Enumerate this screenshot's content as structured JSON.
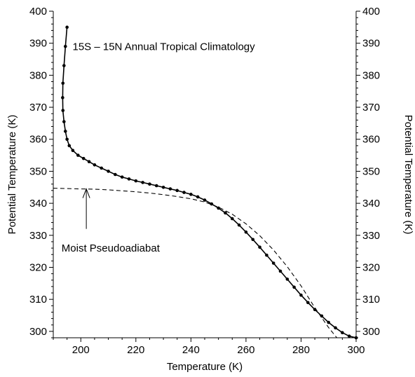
{
  "chart_data": {
    "type": "line",
    "title": "",
    "xlabel": "Temperature (K)",
    "ylabel": "Potential Temperature (K)",
    "ylabel_right": "Potential Temperature (K)",
    "xlim": [
      190,
      300
    ],
    "ylim": [
      298,
      400
    ],
    "xticks": [
      200,
      220,
      240,
      260,
      280,
      300
    ],
    "yticks": [
      300,
      310,
      320,
      330,
      340,
      350,
      360,
      370,
      380,
      390,
      400
    ],
    "grid": false,
    "legend": "none",
    "annotations": [
      {
        "text": "15S – 15N Annual Tropical Climatology",
        "x": 197,
        "y": 389
      },
      {
        "text": "Moist Pseudoadiabat",
        "x": 193,
        "y": 326,
        "arrow_from": [
          202,
          332
        ],
        "arrow_to": [
          202,
          344.5
        ]
      }
    ],
    "series": [
      {
        "style": "solid-with-markers",
        "x": [
          195.0,
          194.4,
          193.9,
          193.5,
          193.4,
          193.5,
          193.9,
          194.4,
          195.0,
          195.8,
          197.1,
          199.0,
          201.0,
          203.0,
          205.0,
          207.5,
          210.0,
          212.5,
          215.0,
          217.5,
          220.0,
          222.5,
          225.0,
          227.5,
          230.0,
          232.5,
          235.0,
          237.5,
          240.0,
          242.5,
          245.0,
          247.5,
          250.0,
          252.5,
          255.0,
          257.5,
          260.0,
          262.5,
          265.0,
          267.5,
          270.0,
          272.5,
          275.0,
          277.5,
          280.0,
          282.5,
          285.0,
          287.5,
          290.0,
          292.5,
          295.0,
          297.5,
          300.0
        ],
        "y": [
          395.0,
          389.0,
          383.0,
          377.5,
          373.0,
          369.0,
          365.5,
          362.5,
          360.0,
          358.0,
          356.5,
          355.0,
          354.0,
          353.0,
          352.0,
          351.0,
          350.0,
          349.0,
          348.2,
          347.6,
          347.0,
          346.5,
          346.0,
          345.5,
          345.0,
          344.5,
          344.0,
          343.4,
          342.8,
          342.0,
          341.0,
          339.8,
          338.5,
          337.0,
          335.2,
          333.2,
          331.0,
          328.7,
          326.3,
          323.8,
          321.3,
          318.8,
          316.3,
          313.8,
          311.3,
          309.0,
          306.8,
          304.8,
          302.8,
          301.1,
          299.6,
          298.5,
          298.0
        ]
      },
      {
        "name": "Moist Pseudoadiabat",
        "style": "dashed",
        "x": [
          190,
          195,
          200,
          205,
          210,
          215,
          220,
          225,
          230,
          235,
          240,
          245,
          250,
          255,
          260,
          265,
          270,
          275,
          280,
          285,
          290,
          293
        ],
        "y": [
          344.7,
          344.6,
          344.5,
          344.4,
          344.2,
          343.9,
          343.6,
          343.2,
          342.7,
          342.1,
          341.4,
          340.4,
          338.8,
          336.6,
          333.6,
          329.9,
          325.4,
          320.2,
          314.2,
          307.4,
          301.2,
          298.0
        ]
      }
    ]
  }
}
